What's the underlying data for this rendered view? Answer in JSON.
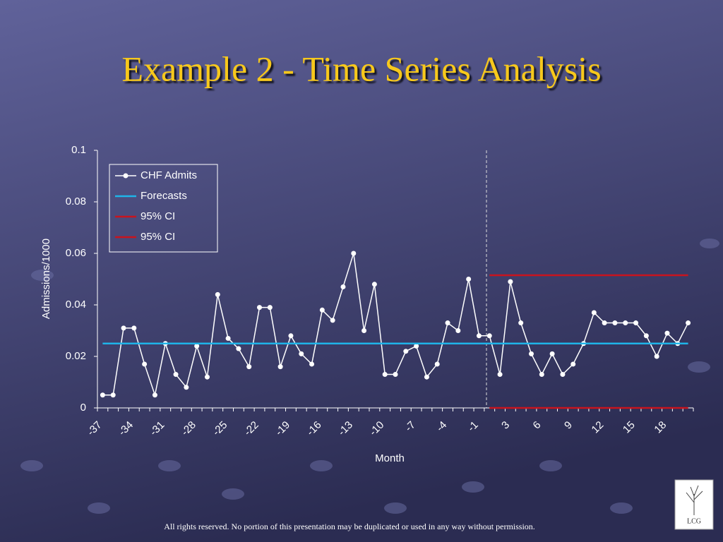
{
  "chart_data": {
    "type": "line",
    "title": "Example 2 - Time Series Analysis",
    "x_label": "Month",
    "y_label": "Admissions/1000",
    "categories": [
      "-37",
      null,
      null,
      "-34",
      null,
      null,
      "-31",
      null,
      null,
      "-28",
      null,
      null,
      "-25",
      null,
      null,
      "-22",
      null,
      null,
      "-19",
      null,
      null,
      "-16",
      null,
      null,
      "-13",
      null,
      null,
      "-10",
      null,
      null,
      "-7",
      null,
      null,
      "-4",
      null,
      null,
      "-1",
      null,
      null,
      "3",
      null,
      null,
      "6",
      null,
      null,
      "9",
      null,
      null,
      "12",
      null,
      null,
      "15",
      null,
      null,
      "18",
      null,
      null
    ],
    "series": [
      {
        "name": "CHF Admits",
        "color": "#ffffff",
        "marker": true,
        "values": [
          0.005,
          0.005,
          0.031,
          0.031,
          0.017,
          0.005,
          0.025,
          0.013,
          0.008,
          0.024,
          0.012,
          0.044,
          0.027,
          0.023,
          0.016,
          0.039,
          0.039,
          0.016,
          0.028,
          0.021,
          0.017,
          0.038,
          0.034,
          0.047,
          0.06,
          0.03,
          0.048,
          0.013,
          0.013,
          0.022,
          0.024,
          0.012,
          0.017,
          0.033,
          0.03,
          0.05,
          0.028,
          0.028,
          0.013,
          0.049,
          0.033,
          0.021,
          0.013,
          0.021,
          0.013,
          0.017,
          0.025,
          0.037,
          0.033,
          0.033,
          0.033,
          0.033,
          0.028,
          0.02,
          0.029,
          0.025,
          0.033
        ]
      },
      {
        "name": "Forecasts",
        "color": "#1fb4e8",
        "marker": false,
        "values": [
          0.025,
          0.025,
          0.025,
          0.025,
          0.025,
          0.025,
          0.025,
          0.025,
          0.025,
          0.025,
          0.025,
          0.025,
          0.025,
          0.025,
          0.025,
          0.025,
          0.025,
          0.025,
          0.025,
          0.025,
          0.025,
          0.025,
          0.025,
          0.025,
          0.025,
          0.025,
          0.025,
          0.025,
          0.025,
          0.025,
          0.025,
          0.025,
          0.025,
          0.025,
          0.025,
          0.025,
          0.025,
          0.025,
          0.025,
          0.025,
          0.025,
          0.025,
          0.025,
          0.025,
          0.025,
          0.025,
          0.025,
          0.025,
          0.025,
          0.025,
          0.025,
          0.025,
          0.025,
          0.025,
          0.025,
          0.025,
          0.025
        ]
      },
      {
        "name": "95% CI",
        "color": "#c8141e",
        "marker": false,
        "values": [
          null,
          null,
          null,
          null,
          null,
          null,
          null,
          null,
          null,
          null,
          null,
          null,
          null,
          null,
          null,
          null,
          null,
          null,
          null,
          null,
          null,
          null,
          null,
          null,
          null,
          null,
          null,
          null,
          null,
          null,
          null,
          null,
          null,
          null,
          null,
          null,
          null,
          0.0515,
          0.0515,
          0.0515,
          0.0515,
          0.0515,
          0.0515,
          0.0515,
          0.0515,
          0.0515,
          0.0515,
          0.0515,
          0.0515,
          0.0515,
          0.0515,
          0.0515,
          0.0515,
          0.0515,
          0.0515,
          0.0515,
          0.0515
        ]
      },
      {
        "name": "95% CI",
        "color": "#c8141e",
        "marker": false,
        "values": [
          null,
          null,
          null,
          null,
          null,
          null,
          null,
          null,
          null,
          null,
          null,
          null,
          null,
          null,
          null,
          null,
          null,
          null,
          null,
          null,
          null,
          null,
          null,
          null,
          null,
          null,
          null,
          null,
          null,
          null,
          null,
          null,
          null,
          null,
          null,
          null,
          null,
          0,
          0,
          0,
          0,
          0,
          0,
          0,
          0,
          0,
          0,
          0,
          0,
          0,
          0,
          0,
          0,
          0,
          0,
          0,
          0
        ]
      }
    ],
    "ylim": [
      0,
      0.1
    ],
    "yticks": [
      0,
      0.02,
      0.04,
      0.06,
      0.08,
      0.1
    ],
    "grid": false,
    "legend": "top-left"
  },
  "footer": "All rights reserved. No portion of this presentation may be duplicated or used in any way without permission.",
  "logo": "LCG"
}
